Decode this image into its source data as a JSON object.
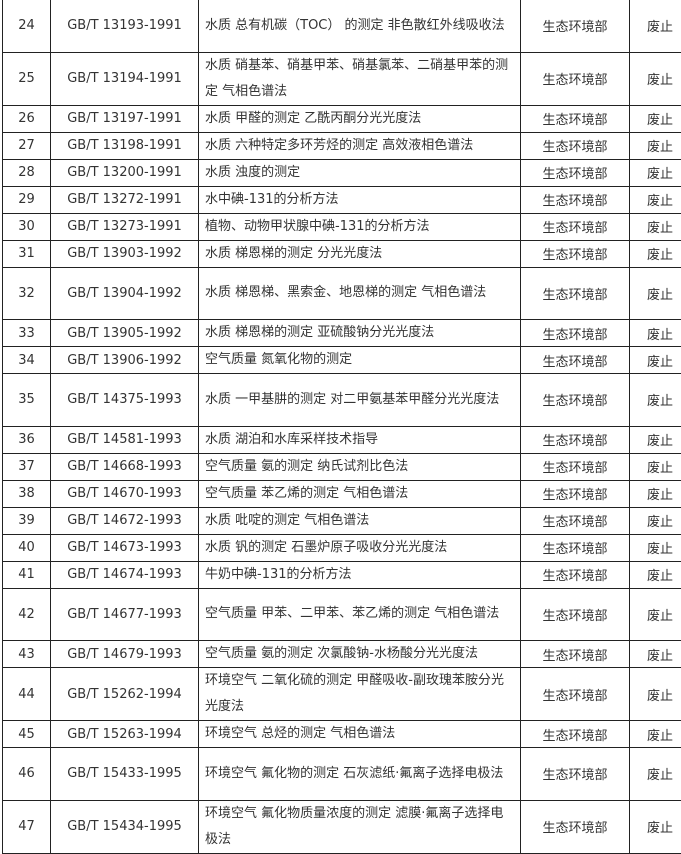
{
  "rows": [
    {
      "no": "24",
      "code": "GB/T 13193-1991",
      "title": "水质 总有机碳（TOC） 的测定 非色散红外线吸收法",
      "dept": "生态环境部",
      "status": "废止",
      "lines": 2
    },
    {
      "no": "25",
      "code": "GB/T 13194-1991",
      "title": "水质 硝基苯、硝基甲苯、硝基氯苯、二硝基甲苯的测定 气相色谱法",
      "dept": "生态环境部",
      "status": "废止",
      "lines": 2
    },
    {
      "no": "26",
      "code": "GB/T 13197-1991",
      "title": "水质 甲醛的测定 乙酰丙酮分光光度法",
      "dept": "生态环境部",
      "status": "废止",
      "lines": 1
    },
    {
      "no": "27",
      "code": "GB/T 13198-1991",
      "title": "水质 六种特定多环芳烃的测定 高效液相色谱法",
      "dept": "生态环境部",
      "status": "废止",
      "lines": 1
    },
    {
      "no": "28",
      "code": "GB/T 13200-1991",
      "title": "水质 浊度的测定",
      "dept": "生态环境部",
      "status": "废止",
      "lines": 1
    },
    {
      "no": "29",
      "code": "GB/T 13272-1991",
      "title": "水中碘-131的分析方法",
      "dept": "生态环境部",
      "status": "废止",
      "lines": 1
    },
    {
      "no": "30",
      "code": "GB/T 13273-1991",
      "title": "植物、动物甲状腺中碘-131的分析方法",
      "dept": "生态环境部",
      "status": "废止",
      "lines": 1
    },
    {
      "no": "31",
      "code": "GB/T 13903-1992",
      "title": "水质 梯恩梯的测定 分光光度法",
      "dept": "生态环境部",
      "status": "废止",
      "lines": 1
    },
    {
      "no": "32",
      "code": "GB/T 13904-1992",
      "title": "水质 梯恩梯、黑索金、地恩梯的测定 气相色谱法",
      "dept": "生态环境部",
      "status": "废止",
      "lines": 2
    },
    {
      "no": "33",
      "code": "GB/T 13905-1992",
      "title": "水质 梯恩梯的测定 亚硫酸钠分光光度法",
      "dept": "生态环境部",
      "status": "废止",
      "lines": 1
    },
    {
      "no": "34",
      "code": "GB/T 13906-1992",
      "title": "空气质量 氮氧化物的测定",
      "dept": "生态环境部",
      "status": "废止",
      "lines": 1
    },
    {
      "no": "35",
      "code": "GB/T 14375-1993",
      "title": "水质 一甲基肼的测定 对二甲氨基苯甲醛分光光度法",
      "dept": "生态环境部",
      "status": "废止",
      "lines": 2
    },
    {
      "no": "36",
      "code": "GB/T 14581-1993",
      "title": "水质 湖泊和水库采样技术指导",
      "dept": "生态环境部",
      "status": "废止",
      "lines": 1
    },
    {
      "no": "37",
      "code": "GB/T 14668-1993",
      "title": "空气质量 氨的测定 纳氏试剂比色法",
      "dept": "生态环境部",
      "status": "废止",
      "lines": 1
    },
    {
      "no": "38",
      "code": "GB/T 14670-1993",
      "title": "空气质量 苯乙烯的测定 气相色谱法",
      "dept": "生态环境部",
      "status": "废止",
      "lines": 1
    },
    {
      "no": "39",
      "code": "GB/T 14672-1993",
      "title": "水质 吡啶的测定 气相色谱法",
      "dept": "生态环境部",
      "status": "废止",
      "lines": 1
    },
    {
      "no": "40",
      "code": "GB/T 14673-1993",
      "title": "水质 钒的测定 石墨炉原子吸收分光光度法",
      "dept": "生态环境部",
      "status": "废止",
      "lines": 1
    },
    {
      "no": "41",
      "code": "GB/T 14674-1993",
      "title": "牛奶中碘-131的分析方法",
      "dept": "生态环境部",
      "status": "废止",
      "lines": 1
    },
    {
      "no": "42",
      "code": "GB/T 14677-1993",
      "title": "空气质量 甲苯、二甲苯、苯乙烯的测定 气相色谱法",
      "dept": "生态环境部",
      "status": "废止",
      "lines": 2
    },
    {
      "no": "43",
      "code": "GB/T 14679-1993",
      "title": "空气质量 氨的测定 次氯酸钠-水杨酸分光光度法",
      "dept": "生态环境部",
      "status": "废止",
      "lines": 1
    },
    {
      "no": "44",
      "code": "GB/T 15262-1994",
      "title": "环境空气 二氧化硫的测定 甲醛吸收-副玫瑰苯胺分光光度法",
      "dept": "生态环境部",
      "status": "废止",
      "lines": 2
    },
    {
      "no": "45",
      "code": "GB/T 15263-1994",
      "title": "环境空气 总烃的测定 气相色谱法",
      "dept": "生态环境部",
      "status": "废止",
      "lines": 1
    },
    {
      "no": "46",
      "code": "GB/T 15433-1995",
      "title": "环境空气 氟化物的测定 石灰滤纸·氟离子选择电极法",
      "dept": "生态环境部",
      "status": "废止",
      "lines": 2
    },
    {
      "no": "47",
      "code": "GB/T 15434-1995",
      "title": "环境空气 氟化物质量浓度的测定 滤膜·氟离子选择电极法",
      "dept": "生态环境部",
      "status": "废止",
      "lines": 2
    }
  ]
}
